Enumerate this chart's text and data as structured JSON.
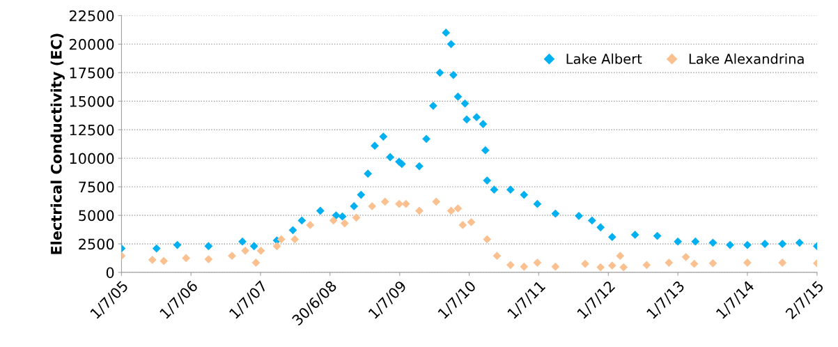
{
  "chart_data": {
    "type": "scatter",
    "ylabel": "Electrical Conductivity (EC)",
    "marker": "diamond",
    "grid": "y",
    "legend": "top right",
    "xlim": [
      "2005-07-01",
      "2015-07-02"
    ],
    "xticks": [
      {
        "value": "2005-07-01",
        "label": "1/7/05"
      },
      {
        "value": "2006-07-01",
        "label": "1/7/06"
      },
      {
        "value": "2007-07-01",
        "label": "1/7/07"
      },
      {
        "value": "2008-06-30",
        "label": "30/6/08"
      },
      {
        "value": "2009-07-01",
        "label": "1/7/09"
      },
      {
        "value": "2010-07-01",
        "label": "1/7/10"
      },
      {
        "value": "2011-07-01",
        "label": "1/7/11"
      },
      {
        "value": "2012-07-01",
        "label": "1/7/12"
      },
      {
        "value": "2013-07-01",
        "label": "1/7/13"
      },
      {
        "value": "2014-07-01",
        "label": "1/7/14"
      },
      {
        "value": "2015-07-02",
        "label": "2/7/15"
      }
    ],
    "ylim": [
      0,
      22500
    ],
    "yticks": [
      0,
      2500,
      5000,
      7500,
      10000,
      12500,
      15000,
      17500,
      20000,
      22500
    ],
    "series": [
      {
        "name": "Lake Albert",
        "color": "#00b0f0",
        "x": [
          "2005-07-01",
          "2006-01-01",
          "2006-04-20",
          "2006-10-01",
          "2007-03-28",
          "2007-05-28",
          "2007-09-25",
          "2007-12-18",
          "2008-02-03",
          "2008-05-10",
          "2008-08-01",
          "2008-09-03",
          "2008-11-03",
          "2008-12-10",
          "2009-01-15",
          "2009-02-20",
          "2009-04-06",
          "2009-05-12",
          "2009-06-28",
          "2009-07-12",
          "2009-10-12",
          "2009-11-18",
          "2009-12-24",
          "2010-01-28",
          "2010-03-01",
          "2010-03-28",
          "2010-04-09",
          "2010-05-03",
          "2010-06-09",
          "2010-06-18",
          "2010-08-09",
          "2010-09-12",
          "2010-09-24",
          "2010-10-03",
          "2010-11-09",
          "2011-02-03",
          "2011-04-15",
          "2011-06-24",
          "2011-09-27",
          "2012-01-28",
          "2012-04-06",
          "2012-05-21",
          "2012-07-21",
          "2012-11-18",
          "2013-03-15",
          "2013-07-01",
          "2013-10-01",
          "2014-01-01",
          "2014-04-01",
          "2014-07-01",
          "2014-10-01",
          "2015-01-01",
          "2015-04-01",
          "2015-07-02"
        ],
        "values": [
          2100,
          2100,
          2400,
          2300,
          2700,
          2300,
          2800,
          3700,
          4550,
          5400,
          5000,
          4900,
          5800,
          6800,
          8650,
          11100,
          11900,
          10100,
          9700,
          9500,
          9300,
          11700,
          14600,
          17500,
          21000,
          20000,
          17300,
          15400,
          14800,
          13400,
          13600,
          13000,
          10700,
          8050,
          7250,
          7250,
          6800,
          6000,
          5150,
          4950,
          4550,
          3950,
          3100,
          3300,
          3200,
          2700,
          2700,
          2600,
          2400,
          2400,
          2500,
          2500,
          2600,
          2300
        ]
      },
      {
        "name": "Lake Alexandrina",
        "color": "#fac090",
        "x": [
          "2005-07-01",
          "2005-12-10",
          "2006-02-08",
          "2006-06-05",
          "2006-10-01",
          "2007-02-01",
          "2007-04-12",
          "2007-06-07",
          "2007-07-03",
          "2007-09-25",
          "2007-10-18",
          "2007-12-28",
          "2008-03-18",
          "2008-07-18",
          "2008-09-15",
          "2008-11-15",
          "2009-02-06",
          "2009-04-15",
          "2009-06-28",
          "2009-08-03",
          "2009-10-12",
          "2010-01-09",
          "2010-03-28",
          "2010-05-03",
          "2010-05-28",
          "2010-07-12",
          "2010-10-03",
          "2010-11-24",
          "2011-02-03",
          "2011-04-15",
          "2011-06-24",
          "2011-09-27",
          "2012-03-01",
          "2012-05-21",
          "2012-07-21",
          "2012-09-01",
          "2012-09-19",
          "2013-01-18",
          "2013-05-15",
          "2013-08-12",
          "2013-09-25",
          "2014-01-01",
          "2014-07-01",
          "2015-01-01",
          "2015-07-02"
        ],
        "values": [
          1450,
          1100,
          1000,
          1250,
          1150,
          1450,
          1900,
          850,
          1900,
          2300,
          2900,
          2900,
          4150,
          4550,
          4300,
          4800,
          5800,
          6200,
          6000,
          6000,
          5400,
          6200,
          5400,
          5600,
          4150,
          4400,
          2900,
          1450,
          650,
          500,
          850,
          500,
          750,
          450,
          600,
          1450,
          450,
          650,
          850,
          1350,
          750,
          800,
          850,
          850,
          800
        ]
      }
    ]
  }
}
